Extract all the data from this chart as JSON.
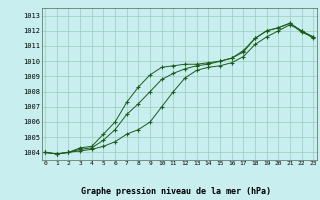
{
  "title": "Graphe pression niveau de la mer (hPa)",
  "bg_color": "#c8eef0",
  "grid_color": "#99ccbb",
  "line_color": "#1a5c1a",
  "xlim": [
    -0.3,
    23.3
  ],
  "ylim": [
    1003.5,
    1013.5
  ],
  "yticks": [
    1004,
    1005,
    1006,
    1007,
    1008,
    1009,
    1010,
    1011,
    1012,
    1013
  ],
  "xticks": [
    0,
    1,
    2,
    3,
    4,
    5,
    6,
    7,
    8,
    9,
    10,
    11,
    12,
    13,
    14,
    15,
    16,
    17,
    18,
    19,
    20,
    21,
    22,
    23
  ],
  "series1": [
    1004.0,
    1003.9,
    1004.0,
    1004.1,
    1004.2,
    1004.4,
    1004.7,
    1005.2,
    1005.5,
    1006.0,
    1007.0,
    1008.0,
    1008.9,
    1009.4,
    1009.6,
    1009.7,
    1009.9,
    1010.3,
    1011.1,
    1011.6,
    1012.0,
    1012.4,
    1012.0,
    1011.5
  ],
  "series2": [
    1004.0,
    1003.9,
    1004.0,
    1004.2,
    1004.3,
    1004.8,
    1005.5,
    1006.5,
    1007.2,
    1008.0,
    1008.8,
    1009.2,
    1009.5,
    1009.7,
    1009.8,
    1010.0,
    1010.2,
    1010.7,
    1011.5,
    1012.0,
    1012.2,
    1012.5,
    1011.9,
    1011.6
  ],
  "series3": [
    1004.0,
    1003.9,
    1004.0,
    1004.3,
    1004.4,
    1005.2,
    1006.0,
    1007.3,
    1008.3,
    1009.1,
    1009.6,
    1009.7,
    1009.8,
    1009.8,
    1009.9,
    1010.0,
    1010.2,
    1010.6,
    1011.5,
    1012.0,
    1012.2,
    1012.5,
    1012.0,
    1011.6
  ]
}
